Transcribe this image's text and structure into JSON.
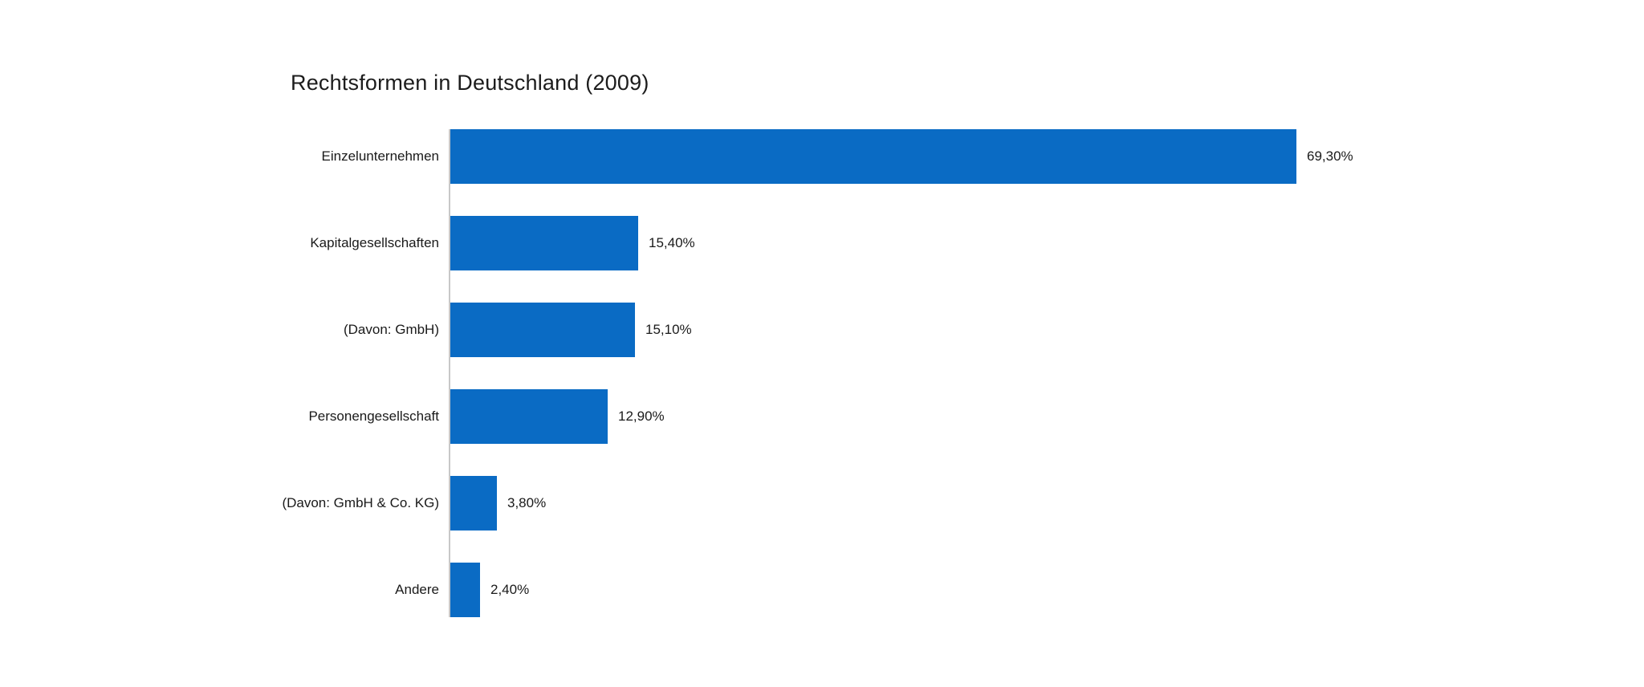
{
  "title": "Rechtsformen in Deutschland (2009)",
  "colors": {
    "bar": "#0a6bc4",
    "axis_line": "#c8c8c8",
    "text": "#1a1a1a",
    "background": "#ffffff"
  },
  "chart_data": {
    "type": "bar",
    "orientation": "horizontal",
    "title": "Rechtsformen in Deutschland (2009)",
    "categories": [
      "Einzelunternehmen",
      "Kapitalgesellschaften",
      "(Davon: GmbH)",
      "Personengesellschaft",
      "(Davon: GmbH & Co. KG)",
      "Andere"
    ],
    "values": [
      69.3,
      15.4,
      15.1,
      12.9,
      3.8,
      2.4
    ],
    "value_labels": [
      "69,30%",
      "15,40%",
      "15,10%",
      "12,90%",
      "3,80%",
      "2,40%"
    ],
    "xlabel": "",
    "ylabel": "",
    "xlim": [
      0,
      70
    ],
    "grid": false,
    "legend": null,
    "bar_color": "#0a6bc4"
  }
}
